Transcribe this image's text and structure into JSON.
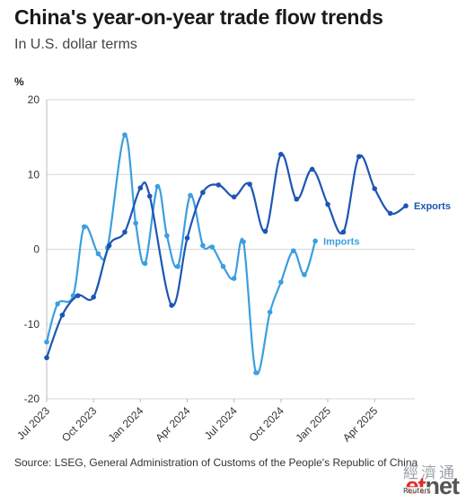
{
  "header": {
    "title": "China's year-on-year trade flow trends",
    "subtitle": "In U.S. dollar terms"
  },
  "footer": {
    "source": "Source: LSEG, General Administration of Customs of the People's Republic of China"
  },
  "watermark": {
    "chinese": "經濟通",
    "brand_et": "et",
    "brand_net": "net",
    "overlay_text": "Reuters"
  },
  "chart_data": {
    "type": "line",
    "title": "China's year-on-year trade flow trends",
    "subtitle": "In U.S. dollar terms",
    "ylabel": "%",
    "ylim": [
      -20,
      20
    ],
    "yticks": [
      20,
      10,
      0,
      -10,
      -20
    ],
    "grid": true,
    "x": [
      "2023-07",
      "2023-08",
      "2023-09",
      "2023-10",
      "2023-11",
      "2023-12",
      "2024-01",
      "2024-02",
      "2024-03",
      "2024-04",
      "2024-05",
      "2024-06",
      "2024-07",
      "2024-08",
      "2024-09",
      "2024-10",
      "2024-11",
      "2024-12",
      "2024-01b",
      "2025-02",
      "2025-03",
      "2025-04",
      "2025-05",
      "2025-06"
    ],
    "x_labels": [
      {
        "label": "Jul 2023",
        "month": 0
      },
      {
        "label": "Oct 2023",
        "month": 3
      },
      {
        "label": "Jan 2024",
        "month": 6
      },
      {
        "label": "Apr 2024",
        "month": 9
      },
      {
        "label": "Jul 2024",
        "month": 12
      },
      {
        "label": "Oct 2024",
        "month": 15
      },
      {
        "label": "Jan 2025",
        "month": 18
      },
      {
        "label": "Apr 2025",
        "month": 21
      }
    ],
    "series": [
      {
        "name": "Exports",
        "color": "#1c56b4",
        "points": [
          {
            "month": 0,
            "value": -14.5
          },
          {
            "month": 1,
            "value": -8.8
          },
          {
            "month": 2,
            "value": -6.2
          },
          {
            "month": 3,
            "value": -6.4
          },
          {
            "month": 4,
            "value": 0.5
          },
          {
            "month": 5,
            "value": 2.3
          },
          {
            "month": 6,
            "value": 8.2
          },
          {
            "month": 6.6,
            "value": 7.1
          },
          {
            "month": 8,
            "value": -7.5
          },
          {
            "month": 9,
            "value": 1.5
          },
          {
            "month": 10,
            "value": 7.6
          },
          {
            "month": 11,
            "value": 8.6
          },
          {
            "month": 12,
            "value": 7.0
          },
          {
            "month": 13,
            "value": 8.7
          },
          {
            "month": 14,
            "value": 2.4
          },
          {
            "month": 15,
            "value": 12.7
          },
          {
            "month": 16,
            "value": 6.7
          },
          {
            "month": 17,
            "value": 10.7
          },
          {
            "month": 18,
            "value": 6.0
          },
          {
            "month": 19,
            "value": 2.3
          },
          {
            "month": 20,
            "value": 12.4
          },
          {
            "month": 21,
            "value": 8.1
          },
          {
            "month": 22,
            "value": 4.8
          },
          {
            "month": 23,
            "value": 5.8
          }
        ]
      },
      {
        "name": "Imports",
        "color": "#3c9ee0",
        "points": [
          {
            "month": 0,
            "value": -12.4
          },
          {
            "month": 0.7,
            "value": -7.3
          },
          {
            "month": 1.7,
            "value": -6.2
          },
          {
            "month": 2.4,
            "value": 3.0
          },
          {
            "month": 3.3,
            "value": -0.6
          },
          {
            "month": 3.9,
            "value": 0.2
          },
          {
            "month": 5.0,
            "value": 15.3
          },
          {
            "month": 5.7,
            "value": 3.5
          },
          {
            "month": 6.3,
            "value": -1.9
          },
          {
            "month": 7.1,
            "value": 8.4
          },
          {
            "month": 7.7,
            "value": 1.8
          },
          {
            "month": 8.4,
            "value": -2.3
          },
          {
            "month": 9.2,
            "value": 7.2
          },
          {
            "month": 10.0,
            "value": 0.5
          },
          {
            "month": 10.6,
            "value": 0.3
          },
          {
            "month": 11.3,
            "value": -2.3
          },
          {
            "month": 12.0,
            "value": -3.9
          },
          {
            "month": 12.6,
            "value": 1.0
          },
          {
            "month": 13.4,
            "value": -16.5
          },
          {
            "month": 14.3,
            "value": -8.4
          },
          {
            "month": 15.0,
            "value": -4.4
          },
          {
            "month": 15.8,
            "value": -0.2
          },
          {
            "month": 16.5,
            "value": -3.4
          },
          {
            "month": 17.2,
            "value": 1.1
          }
        ]
      }
    ]
  }
}
